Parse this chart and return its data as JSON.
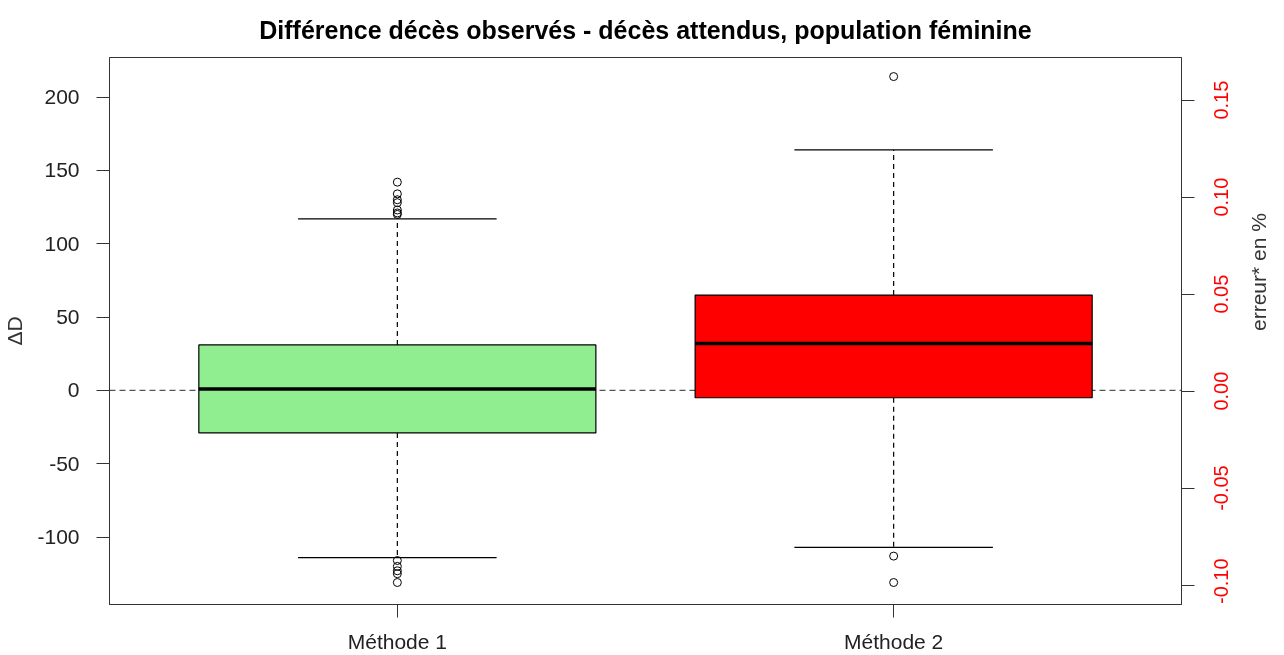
{
  "chart_data": {
    "type": "box",
    "title": "Différence décès observés - décès attendus, population féminine",
    "ylabel": "ΔD",
    "y2label": "erreur* en %",
    "categories": [
      "Méthode 1",
      "Méthode 2"
    ],
    "boxes": [
      {
        "low": -114,
        "q1": -29,
        "median": 1,
        "q3": 31,
        "high": 117,
        "outliers": [
          142,
          134,
          130,
          128,
          123,
          121,
          120,
          -116,
          -120,
          -123,
          -125,
          -131
        ]
      },
      {
        "low": -107,
        "q1": -5,
        "median": 32,
        "q3": 65,
        "high": 164,
        "outliers": [
          214,
          -113,
          -131
        ]
      }
    ],
    "colors": [
      "#90ee90",
      "#ff0000"
    ],
    "ylim": [
      -146,
      227
    ],
    "yticks": [
      -100,
      -50,
      0,
      50,
      100,
      150,
      200
    ],
    "y2lim": [
      -0.11,
      0.172
    ],
    "y2ticks": [
      {
        "value": -0.1,
        "label": "-0.10"
      },
      -0.05,
      {
        "value": 0,
        "label": "0.00"
      },
      0.05,
      {
        "value": 0.1,
        "label": "0.10"
      },
      0.15
    ],
    "ref_lines": [
      {
        "axis": "y",
        "value": 0,
        "color": "#555555",
        "line_style": "dashed"
      }
    ]
  }
}
